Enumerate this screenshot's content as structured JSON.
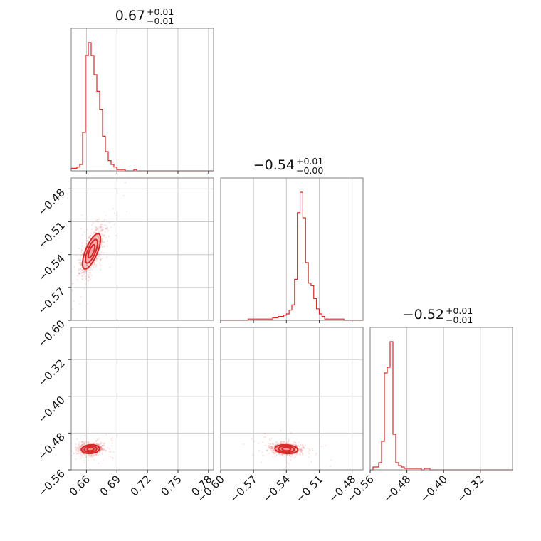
{
  "colors": {
    "accent": "#d62728",
    "grid": "#c8c8c8",
    "frame": "#808080",
    "fill": "#f3a5a6"
  },
  "chart_data": {
    "type": "corner",
    "parameters": [
      {
        "range": [
          0.645,
          0.785
        ],
        "ticks": [
          "0.66",
          "0.69",
          "0.72",
          "0.75",
          "0.78"
        ],
        "tick_values": [
          0.66,
          0.69,
          0.72,
          0.75,
          0.78
        ],
        "title": {
          "main": "0.67",
          "plus": "+0.01",
          "minus": "−0.01"
        }
      },
      {
        "range": [
          -0.6,
          -0.47
        ],
        "ticks": [
          "−0.60",
          "−0.57",
          "−0.54",
          "−0.51",
          "−0.48"
        ],
        "tick_values": [
          -0.6,
          -0.57,
          -0.54,
          -0.51,
          -0.48
        ],
        "title": {
          "main": "−0.54",
          "plus": "+0.01",
          "minus": "−0.00"
        }
      },
      {
        "range": [
          -0.56,
          -0.25
        ],
        "ticks": [
          "−0.56",
          "−0.48",
          "−0.40",
          "−0.32"
        ],
        "tick_values": [
          -0.56,
          -0.48,
          -0.4,
          -0.32
        ],
        "title": {
          "main": "−0.52",
          "plus": "+0.01",
          "minus": "−0.01"
        }
      }
    ],
    "histograms": [
      {
        "param": 0,
        "bin_start": 0.645,
        "bin_width": 0.0028,
        "counts": [
          2,
          2,
          3,
          5,
          30,
          90,
          100,
          90,
          75,
          62,
          48,
          27,
          15,
          8,
          5,
          3,
          1,
          1,
          1,
          0,
          0,
          0,
          1,
          0,
          0,
          0,
          0,
          0,
          0,
          0,
          0,
          0,
          0,
          0,
          0,
          0,
          0,
          0,
          0,
          0,
          0,
          0,
          0,
          0,
          0,
          0,
          0,
          0,
          0,
          0
        ]
      },
      {
        "param": 1,
        "bin_start": -0.6,
        "bin_width": 0.0025,
        "counts": [
          0,
          0,
          0,
          0,
          0,
          0,
          0,
          0,
          0,
          0,
          1,
          1,
          1,
          1,
          1,
          1,
          1,
          1,
          1,
          2,
          2,
          3,
          3,
          4,
          5,
          8,
          12,
          32,
          84,
          100,
          80,
          45,
          29,
          27,
          17,
          9,
          5,
          3,
          1,
          1,
          1,
          1,
          1,
          1,
          1,
          0,
          0,
          0,
          0,
          0,
          0,
          0
        ]
      },
      {
        "param": 2,
        "bin_start": -0.56,
        "bin_width": 0.0062,
        "counts": [
          0,
          2,
          2,
          5,
          20,
          68,
          72,
          90,
          25,
          5,
          3,
          2,
          1,
          1,
          1,
          1,
          1,
          1,
          0,
          1,
          1,
          0,
          0,
          0,
          0,
          0,
          0,
          0,
          0,
          0,
          0,
          0,
          0,
          0,
          0,
          0,
          0,
          0,
          0,
          0,
          0,
          0,
          0,
          0,
          0,
          0,
          0,
          0,
          0,
          0
        ]
      }
    ],
    "scatter_panels": [
      {
        "x": 0,
        "y": 1,
        "center": [
          0.665,
          -0.537
        ],
        "cov": [
          [
            3.5e-05,
            4.5e-05
          ],
          [
            4.5e-05,
            0.000115
          ]
        ],
        "levels": [
          0.55,
          1.0,
          1.5
        ]
      },
      {
        "x": 0,
        "y": 2,
        "center": [
          0.664,
          -0.515
        ],
        "cov": [
          [
            3e-05,
            4e-06
          ],
          [
            4e-06,
            3.5e-05
          ]
        ],
        "levels": [
          0.6,
          1.1,
          1.6
        ]
      },
      {
        "x": 1,
        "y": 2,
        "center": [
          -0.54,
          -0.515
        ],
        "cov": [
          [
            4.2e-05,
            -6e-06
          ],
          [
            -6e-06,
            3.5e-05
          ]
        ],
        "levels": [
          0.6,
          1.1,
          1.6
        ]
      }
    ],
    "grid": true,
    "legend": "none"
  }
}
